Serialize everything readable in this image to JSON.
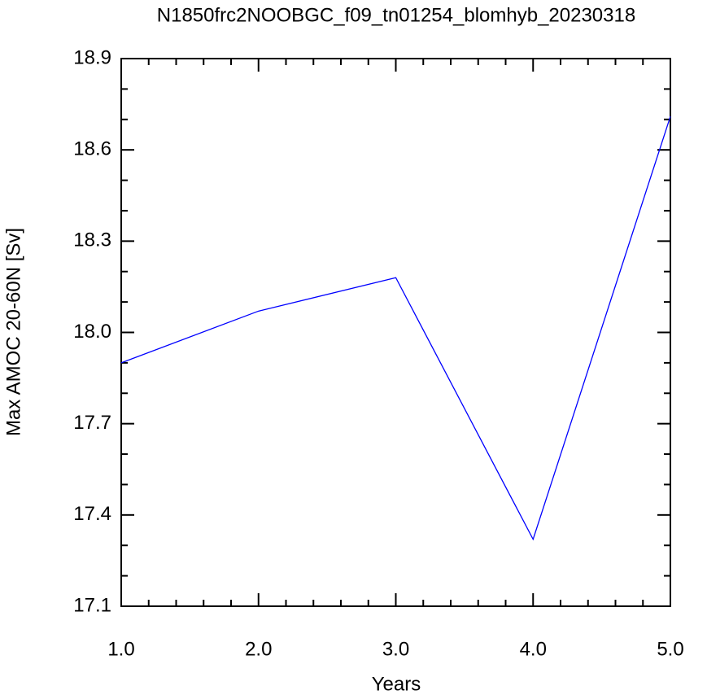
{
  "chart_data": {
    "type": "line",
    "title": "N1850frc2NOOBGC_f09_tn01254_blomhyb_20230318",
    "x_label": "Years",
    "y_label": "Max AMOC 20-60N [Sv]",
    "x": [
      1,
      2,
      3,
      4,
      5
    ],
    "series": [
      {
        "color": "#0000ff",
        "values": [
          17.9,
          18.07,
          18.18,
          17.32,
          18.71
        ]
      }
    ],
    "xlim": [
      1,
      5
    ],
    "ylim": [
      17.1,
      18.9
    ],
    "xticks": [
      {
        "value": 1,
        "label": "1.0"
      },
      {
        "value": 2,
        "label": "2.0"
      },
      {
        "value": 3,
        "label": "3.0"
      },
      {
        "value": 4,
        "label": "4.0"
      },
      {
        "value": 5,
        "label": "5.0"
      }
    ],
    "yticks": [
      17.1,
      17.4,
      17.7,
      {
        "value": 18,
        "label": "18.0"
      },
      18.3,
      18.6,
      18.9
    ],
    "grid": false
  }
}
